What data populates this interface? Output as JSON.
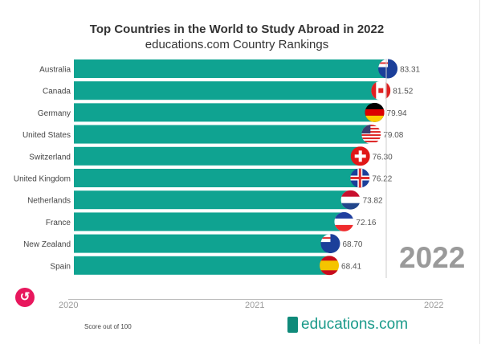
{
  "chart_data": {
    "type": "bar",
    "title": "Top Countries in the World to Study Abroad in 2022",
    "subtitle": "educations.com Country Rankings",
    "categories": [
      "Australia",
      "Canada",
      "Germany",
      "United States",
      "Switzerland",
      "United Kingdom",
      "Netherlands",
      "France",
      "New Zealand",
      "Spain"
    ],
    "values": [
      83.31,
      81.52,
      79.94,
      79.08,
      76.3,
      76.22,
      73.82,
      72.16,
      68.7,
      68.41
    ],
    "labels": [
      "83.31",
      "81.52",
      "79.94",
      "79.08",
      "76.30",
      "76.22",
      "73.82",
      "72.16",
      "68.70",
      "68.41"
    ],
    "xlabel": "Score out of 100",
    "xlim": [
      3.5,
      100
    ],
    "bar_color": "#0fa391",
    "current_year": "2022",
    "timeline_ticks": [
      "2020",
      "2021",
      "2022"
    ]
  },
  "brand": {
    "logo_text": "educations.com"
  },
  "flags": [
    {
      "bg": "#1b3f9a",
      "fg": "#e03030"
    },
    {
      "bg": "#ffffff",
      "fg": "#e02020"
    },
    {
      "bg": "#000000",
      "fg": "#ffcc00",
      "mid": "#dd0000"
    },
    {
      "bg": "#ffffff",
      "fg": "#d22"
    },
    {
      "bg": "#e01818",
      "fg": "#ffffff"
    },
    {
      "bg": "#1b3f9a",
      "fg": "#e03030"
    },
    {
      "bg": "#ffffff",
      "fg": "#c8102e",
      "b": "#21468b"
    },
    {
      "bg": "#ffffff",
      "fg": "#1f3f9f",
      "b": "#ef2b2d"
    },
    {
      "bg": "#1b3f9a",
      "fg": "#e03030"
    },
    {
      "bg": "#f5c400",
      "fg": "#c60b1e"
    }
  ],
  "controls": {
    "replay_icon": "↺"
  }
}
